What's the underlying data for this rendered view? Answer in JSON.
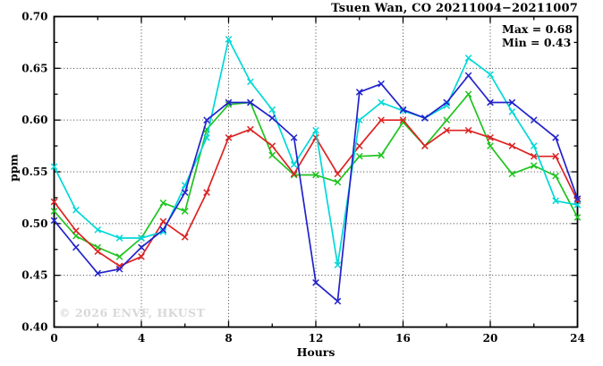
{
  "header": {
    "title": "Tsuen Wan, CO 20211004−20211007"
  },
  "annotation": {
    "max_label": "Max = 0.68",
    "min_label": "Min = 0.43"
  },
  "watermark": "© 2026 ENVF, HKUST",
  "chart_data": {
    "type": "line",
    "title": "Tsuen Wan, CO 20211004−20211007",
    "xlabel": "Hours",
    "ylabel": "ppm",
    "xlim": [
      0,
      24
    ],
    "ylim": [
      0.4,
      0.7
    ],
    "grid": true,
    "legend": "none",
    "max": 0.68,
    "min": 0.43,
    "x_tick_values": [
      0,
      4,
      8,
      12,
      16,
      20,
      24
    ],
    "x_tick_labels": [
      "0",
      "4",
      "8",
      "12",
      "16",
      "20",
      "24"
    ],
    "x_minor_ticks": [
      2,
      6,
      10,
      14,
      18,
      22
    ],
    "y_tick_values": [
      0.4,
      0.45,
      0.5,
      0.55,
      0.6,
      0.65,
      0.7
    ],
    "y_tick_labels": [
      "0.40",
      "0.45",
      "0.50",
      "0.55",
      "0.60",
      "0.65",
      "0.70"
    ],
    "y_minor_ticks": [
      0.425,
      0.475,
      0.525,
      0.575,
      0.625,
      0.675
    ],
    "x": [
      0,
      1,
      2,
      3,
      4,
      5,
      6,
      7,
      8,
      9,
      10,
      11,
      12,
      13,
      14,
      15,
      16,
      17,
      18,
      19,
      20,
      21,
      22,
      23,
      24
    ],
    "series": [
      {
        "name": "green",
        "color": "#1fc41f",
        "values": [
          0.512,
          0.488,
          0.477,
          0.468,
          0.486,
          0.52,
          0.512,
          0.591,
          0.615,
          0.617,
          0.566,
          0.547,
          0.547,
          0.54,
          0.565,
          0.566,
          0.598,
          0.575,
          0.6,
          0.625,
          0.575,
          0.548,
          0.556,
          0.546,
          0.506
        ]
      },
      {
        "name": "red",
        "color": "#dd2222",
        "values": [
          0.521,
          0.493,
          0.473,
          0.459,
          0.468,
          0.502,
          0.487,
          0.53,
          0.583,
          0.591,
          0.575,
          0.548,
          0.583,
          0.548,
          0.575,
          0.6,
          0.6,
          0.575,
          0.59,
          0.59,
          0.583,
          0.575,
          0.565,
          0.565,
          0.522
        ]
      },
      {
        "name": "cyan",
        "color": "#00d8d8",
        "values": [
          0.555,
          0.513,
          0.494,
          0.486,
          0.486,
          0.492,
          0.537,
          0.583,
          0.678,
          0.637,
          0.61,
          0.557,
          0.59,
          0.46,
          0.6,
          0.617,
          0.609,
          0.602,
          0.614,
          0.66,
          0.644,
          0.608,
          0.575,
          0.522,
          0.518
        ]
      },
      {
        "name": "blue",
        "color": "#2222cc",
        "values": [
          0.503,
          0.477,
          0.452,
          0.456,
          0.477,
          0.494,
          0.53,
          0.6,
          0.617,
          0.617,
          0.602,
          0.583,
          0.443,
          0.425,
          0.627,
          0.635,
          0.61,
          0.602,
          0.617,
          0.643,
          0.617,
          0.617,
          0.6,
          0.583,
          0.524
        ]
      }
    ]
  }
}
